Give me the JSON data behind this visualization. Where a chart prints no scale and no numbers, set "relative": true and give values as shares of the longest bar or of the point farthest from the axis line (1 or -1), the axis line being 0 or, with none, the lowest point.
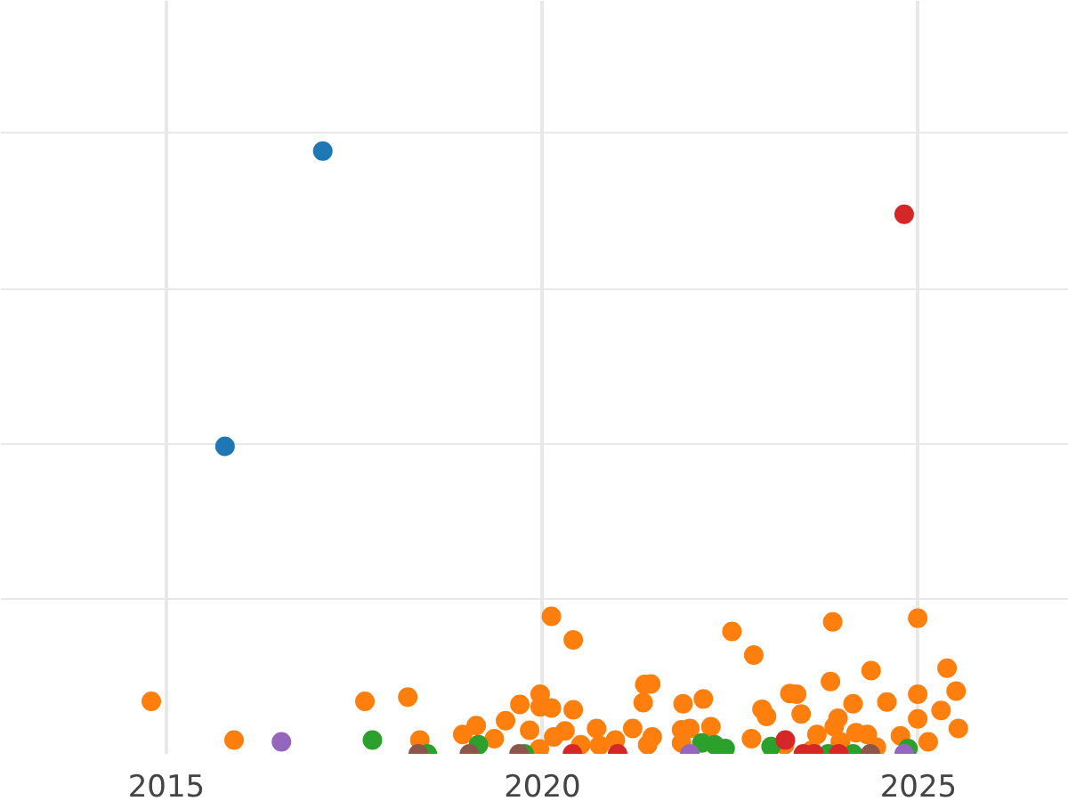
{
  "chart_data": {
    "type": "scatter",
    "relative": true,
    "marker": "circle",
    "grid": true,
    "tick_labels": "x",
    "xlim": [
      2012.8,
      2027.0
    ],
    "xticks": [
      2015,
      2020,
      2025
    ],
    "series": [
      {
        "color": "#1f77b4",
        "x": [
          2017.08,
          2015.78
        ],
        "values": [
          1.0,
          0.51
        ]
      },
      {
        "color": "#ff7f0e",
        "x": [
          2014.8,
          2015.9,
          2017.64,
          2018.21,
          2018.37,
          2018.94,
          2019.12,
          2019.36,
          2019.51,
          2019.7,
          2019.83,
          2019.97,
          2019.97,
          2020.12,
          2020.12,
          2020.41,
          2020.41,
          2020.3,
          2020.15,
          2019.96,
          2020.51,
          2020.72,
          2020.76,
          2020.97,
          2021.2,
          2021.34,
          2021.36,
          2021.44,
          2021.46,
          2021.4,
          2021.87,
          2021.85,
          2021.96,
          2022.14,
          2022.24,
          2021.85,
          2022.52,
          2022.81,
          2022.92,
          2022.98,
          2022.78,
          2023.29,
          2023.38,
          2023.44,
          2023.86,
          2023.83,
          2023.93,
          2023.88,
          2023.96,
          2023.65,
          2024.13,
          2024.37,
          2024.17,
          2024.32,
          2024.58,
          2024.76,
          2024.99,
          2024.99,
          2024.99,
          2025.13,
          2025.3,
          2025.38,
          2025.5,
          2025.53,
          2023.22,
          2023.58,
          2024.44
        ],
        "values": [
          0.087,
          0.023,
          0.087,
          0.094,
          0.023,
          0.032,
          0.047,
          0.025,
          0.055,
          0.082,
          0.039,
          0.099,
          0.078,
          0.076,
          0.228,
          0.189,
          0.073,
          0.038,
          0.028,
          0.008,
          0.015,
          0.042,
          0.014,
          0.023,
          0.042,
          0.085,
          0.115,
          0.116,
          0.028,
          0.015,
          0.083,
          0.04,
          0.042,
          0.091,
          0.045,
          0.018,
          0.203,
          0.164,
          0.074,
          0.062,
          0.025,
          0.1,
          0.099,
          0.066,
          0.219,
          0.12,
          0.059,
          0.045,
          0.02,
          0.032,
          0.083,
          0.138,
          0.035,
          0.032,
          0.086,
          0.03,
          0.225,
          0.099,
          0.058,
          0.02,
          0.072,
          0.142,
          0.104,
          0.042,
          0.015,
          0.006,
          0.011
        ]
      },
      {
        "color": "#2ca02c",
        "x": [
          2017.74,
          2018.47,
          2019.15,
          2019.76,
          2022.12,
          2022.29,
          2022.43,
          2023.04,
          2023.8,
          2024.13,
          2024.86
        ],
        "values": [
          0.023,
          0,
          0.015,
          0,
          0.018,
          0.015,
          0.009,
          0.012,
          0,
          0,
          0.009
        ]
      },
      {
        "color": "#d62728",
        "x": [
          2024.81,
          2023.23,
          2020.4,
          2021.0,
          2023.47,
          2023.61,
          2023.94
        ],
        "values": [
          0.895,
          0.023,
          0,
          0,
          0,
          0,
          0
        ]
      },
      {
        "color": "#9467bd",
        "x": [
          2016.53,
          2021.96,
          2024.81
        ],
        "values": [
          0.02,
          0,
          0
        ]
      },
      {
        "color": "#8c564b",
        "x": [
          2018.35,
          2019.03,
          2019.69,
          2024.36
        ],
        "values": [
          0,
          0,
          0,
          0
        ]
      }
    ]
  }
}
